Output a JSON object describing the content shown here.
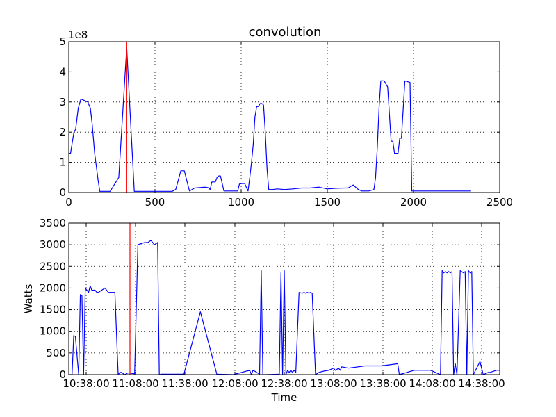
{
  "chart_data": [
    {
      "type": "line",
      "title": "convolution",
      "xlabel": "",
      "ylabel": "",
      "y_offset_label": "1e8",
      "xlim": [
        0,
        2500
      ],
      "ylim": [
        0,
        5
      ],
      "x_ticks": [
        0,
        500,
        1000,
        1500,
        2000,
        2500
      ],
      "x_tick_labels": [
        "0",
        "500",
        "1000",
        "1500",
        "2000",
        "2500"
      ],
      "y_ticks": [
        0,
        1,
        2,
        3,
        4,
        5
      ],
      "y_tick_labels": [
        "0",
        "1",
        "2",
        "3",
        "4",
        "5"
      ],
      "grid": true,
      "color": "#0000ff",
      "marker_color": "#ff0000",
      "marker_x": 336,
      "series": [
        {
          "x": [
            0,
            10,
            30,
            40,
            55,
            70,
            90,
            110,
            125,
            135,
            150,
            170,
            180,
            200,
            240,
            290,
            336,
            380,
            430,
            500,
            550,
            600,
            620,
            650,
            660,
            670,
            700,
            730,
            790,
            810,
            820,
            830,
            850,
            860,
            870,
            880,
            900,
            920,
            940,
            950,
            960,
            980,
            990,
            1000,
            1010,
            1020,
            1040,
            1050,
            1060,
            1070,
            1080,
            1090,
            1100,
            1110,
            1120,
            1130,
            1140,
            1150,
            1160,
            1180,
            1210,
            1250,
            1300,
            1350,
            1400,
            1450,
            1500,
            1550,
            1600,
            1620,
            1650,
            1680,
            1700,
            1740,
            1770,
            1780,
            1790,
            1800,
            1810,
            1830,
            1850,
            1870,
            1880,
            1890,
            1900,
            1910,
            1920,
            1930,
            1950,
            1980,
            1990,
            2000,
            2010,
            2030,
            2060,
            2090,
            2110,
            2150,
            2180,
            2210,
            2240,
            2270,
            2300,
            2330
          ],
          "y": [
            1.3,
            1.3,
            2.0,
            2.1,
            2.8,
            3.1,
            3.05,
            3.0,
            2.8,
            2.3,
            1.3,
            0.4,
            0.04,
            0.04,
            0.04,
            0.5,
            4.8,
            0.04,
            0.04,
            0.04,
            0.04,
            0.04,
            0.1,
            0.72,
            0.72,
            0.72,
            0.05,
            0.15,
            0.18,
            0.16,
            0.1,
            0.35,
            0.35,
            0.5,
            0.55,
            0.55,
            0.05,
            0.05,
            0.05,
            0.05,
            0.05,
            0.05,
            0.28,
            0.3,
            0.3,
            0.3,
            0.05,
            0.5,
            1.0,
            1.6,
            2.5,
            2.85,
            2.85,
            2.95,
            2.95,
            2.9,
            2.0,
            0.8,
            0.1,
            0.1,
            0.12,
            0.1,
            0.12,
            0.15,
            0.15,
            0.18,
            0.12,
            0.14,
            0.15,
            0.15,
            0.25,
            0.1,
            0.05,
            0.05,
            0.1,
            0.5,
            1.5,
            2.8,
            3.7,
            3.7,
            3.5,
            1.7,
            1.7,
            1.3,
            1.3,
            1.3,
            1.8,
            1.8,
            3.7,
            3.65,
            0.05,
            0.05,
            0.05,
            0.05,
            0.05,
            0.05,
            0.05,
            0.05,
            0.05,
            0.05,
            0.05,
            0.05,
            0.05,
            0.05
          ]
        }
      ]
    },
    {
      "type": "line",
      "title": "",
      "xlabel": "Time",
      "ylabel": "Watts",
      "xlim": [
        0,
        262
      ],
      "ylim": [
        0,
        3500
      ],
      "x_tick_labels": [
        "10:38:00",
        "11:08:00",
        "11:38:00",
        "12:08:00",
        "12:38:00",
        "13:08:00",
        "13:38:00",
        "14:08:00",
        "14:38:00"
      ],
      "y_ticks": [
        0,
        500,
        1000,
        1500,
        2000,
        2500,
        3000,
        3500
      ],
      "y_tick_labels": [
        "0",
        "500",
        "1000",
        "1500",
        "2000",
        "2500",
        "3000",
        "3500"
      ],
      "grid": true,
      "color": "#0000ff",
      "marker_color": "#ff0000",
      "marker_time": "11:06:00",
      "series": [
        {
          "x": [
            0,
            2,
            3,
            4,
            6,
            7,
            8,
            9,
            10,
            12,
            13,
            14,
            16,
            17,
            18,
            20,
            22,
            24,
            26,
            28,
            30,
            31,
            32,
            34,
            36,
            40,
            42,
            46,
            48,
            50,
            52,
            54,
            55,
            56,
            60,
            70,
            80,
            90,
            100,
            110,
            111,
            112,
            113,
            116,
            117,
            118,
            120,
            128,
            129,
            130,
            131,
            132,
            133,
            134,
            135,
            136,
            137,
            138,
            140,
            142,
            143,
            144,
            145,
            146,
            147,
            148,
            150,
            152,
            155,
            158,
            161,
            162,
            163,
            164,
            165,
            166,
            170,
            180,
            190,
            200,
            201,
            210,
            220,
            226,
            227,
            228,
            229,
            230,
            231,
            232,
            233,
            234,
            235,
            236,
            238,
            240,
            241,
            242,
            243,
            244,
            245,
            246,
            250,
            252,
            255,
            256,
            260,
            262
          ],
          "y": [
            0,
            0,
            900,
            880,
            0,
            1850,
            1820,
            0,
            2000,
            1900,
            2050,
            1950,
            1950,
            1900,
            1900,
            1950,
            2000,
            1900,
            1900,
            1900,
            0,
            50,
            50,
            0,
            40,
            20,
            3000,
            3050,
            3050,
            3100,
            3000,
            3050,
            0,
            10,
            10,
            10,
            1450,
            10,
            0,
            100,
            0,
            100,
            80,
            10,
            2400,
            0,
            0,
            10,
            2350,
            0,
            2400,
            0,
            100,
            50,
            100,
            50,
            100,
            50,
            1900,
            1880,
            1900,
            1880,
            1900,
            1880,
            1900,
            1880,
            0,
            50,
            80,
            100,
            150,
            100,
            120,
            150,
            100,
            180,
            150,
            200,
            200,
            250,
            0,
            100,
            100,
            0,
            2400,
            2350,
            2380,
            2350,
            2380,
            2350,
            2380,
            0,
            250,
            0,
            2400,
            2350,
            2380,
            0,
            2400,
            2350,
            2380,
            0,
            300,
            0,
            50,
            50,
            100,
            100
          ]
        }
      ]
    }
  ]
}
